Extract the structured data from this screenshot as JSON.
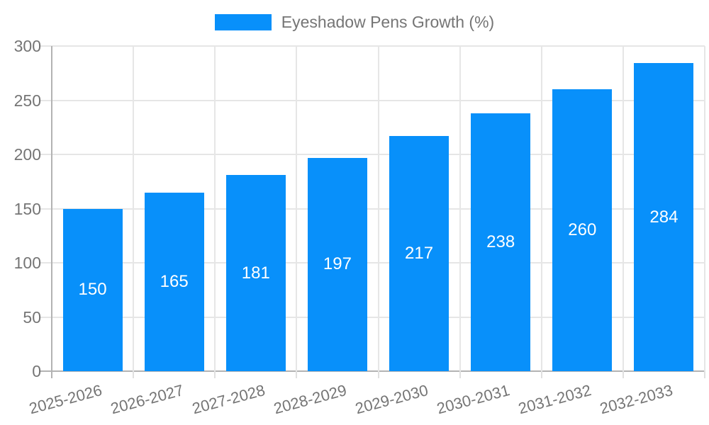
{
  "legend": {
    "label": "Eyeshadow Pens Growth (%)"
  },
  "colors": {
    "bar": "#0890FA",
    "grid": "#e6e6e6",
    "axis_line": "#b3b3b3",
    "boundary_tick": "#e0e0e0",
    "tick_text": "#757575",
    "value_text": "#ffffff",
    "background": "#ffffff"
  },
  "chart_data": {
    "type": "bar",
    "title": "",
    "xlabel": "",
    "ylabel": "",
    "legend_position": "top",
    "grid": "both",
    "series": [
      {
        "name": "Eyeshadow Pens Growth (%)",
        "values": [
          150,
          165,
          181,
          197,
          217,
          238,
          260,
          284
        ]
      }
    ],
    "categories": [
      "2025-2026",
      "2026-2027",
      "2027-2028",
      "2028-2029",
      "2029-2030",
      "2030-2031",
      "2031-2032",
      "2032-2033"
    ],
    "value_labels_position": "inside-middle",
    "ylim": [
      0,
      300
    ],
    "yticks": [
      0,
      50,
      100,
      150,
      200,
      250,
      300
    ]
  }
}
